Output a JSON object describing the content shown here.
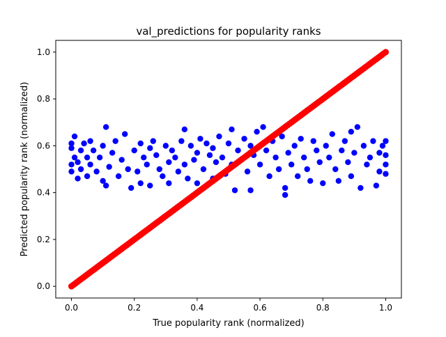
{
  "chart_data": {
    "type": "scatter",
    "title": "val_predictions for popularity ranks",
    "xlabel": "True popularity rank (normalized)",
    "ylabel": "Predicted popularity rank (normalized)",
    "xlim": [
      -0.05,
      1.05
    ],
    "ylim": [
      -0.05,
      1.05
    ],
    "xticks": [
      0.0,
      0.2,
      0.4,
      0.6,
      0.8,
      1.0
    ],
    "yticks": [
      0.0,
      0.2,
      0.4,
      0.6,
      0.8,
      1.0
    ],
    "tick_labels_x": [
      "0.0",
      "0.2",
      "0.4",
      "0.6",
      "0.8",
      "1.0"
    ],
    "tick_labels_y": [
      "0.0",
      "0.2",
      "0.4",
      "0.6",
      "0.8",
      "1.0"
    ],
    "grid": false,
    "series": [
      {
        "color": "#0000ff",
        "marker": "circle",
        "points": [
          [
            0.0,
            0.49
          ],
          [
            0.0,
            0.52
          ],
          [
            0.0,
            0.59
          ],
          [
            0.0,
            0.61
          ],
          [
            0.01,
            0.55
          ],
          [
            0.01,
            0.64
          ],
          [
            0.02,
            0.46
          ],
          [
            0.02,
            0.53
          ],
          [
            0.03,
            0.5
          ],
          [
            0.03,
            0.58
          ],
          [
            0.04,
            0.61
          ],
          [
            0.05,
            0.47
          ],
          [
            0.05,
            0.55
          ],
          [
            0.06,
            0.52
          ],
          [
            0.06,
            0.62
          ],
          [
            0.07,
            0.58
          ],
          [
            0.08,
            0.49
          ],
          [
            0.09,
            0.55
          ],
          [
            0.1,
            0.45
          ],
          [
            0.1,
            0.6
          ],
          [
            0.11,
            0.43
          ],
          [
            0.11,
            0.68
          ],
          [
            0.12,
            0.51
          ],
          [
            0.13,
            0.57
          ],
          [
            0.14,
            0.62
          ],
          [
            0.15,
            0.47
          ],
          [
            0.16,
            0.54
          ],
          [
            0.17,
            0.65
          ],
          [
            0.18,
            0.5
          ],
          [
            0.19,
            0.42
          ],
          [
            0.2,
            0.58
          ],
          [
            0.21,
            0.49
          ],
          [
            0.22,
            0.61
          ],
          [
            0.22,
            0.44
          ],
          [
            0.23,
            0.55
          ],
          [
            0.24,
            0.52
          ],
          [
            0.25,
            0.59
          ],
          [
            0.25,
            0.43
          ],
          [
            0.26,
            0.62
          ],
          [
            0.27,
            0.56
          ],
          [
            0.28,
            0.5
          ],
          [
            0.29,
            0.47
          ],
          [
            0.3,
            0.6
          ],
          [
            0.31,
            0.53
          ],
          [
            0.31,
            0.44
          ],
          [
            0.32,
            0.58
          ],
          [
            0.33,
            0.55
          ],
          [
            0.34,
            0.49
          ],
          [
            0.35,
            0.62
          ],
          [
            0.36,
            0.67
          ],
          [
            0.36,
            0.52
          ],
          [
            0.37,
            0.46
          ],
          [
            0.38,
            0.6
          ],
          [
            0.39,
            0.54
          ],
          [
            0.4,
            0.57
          ],
          [
            0.4,
            0.44
          ],
          [
            0.41,
            0.63
          ],
          [
            0.42,
            0.5
          ],
          [
            0.43,
            0.61
          ],
          [
            0.44,
            0.56
          ],
          [
            0.45,
            0.46
          ],
          [
            0.45,
            0.59
          ],
          [
            0.46,
            0.53
          ],
          [
            0.47,
            0.64
          ],
          [
            0.48,
            0.55
          ],
          [
            0.49,
            0.48
          ],
          [
            0.5,
            0.61
          ],
          [
            0.51,
            0.52
          ],
          [
            0.51,
            0.67
          ],
          [
            0.52,
            0.41
          ],
          [
            0.53,
            0.58
          ],
          [
            0.54,
            0.54
          ],
          [
            0.55,
            0.63
          ],
          [
            0.56,
            0.49
          ],
          [
            0.57,
            0.41
          ],
          [
            0.57,
            0.6
          ],
          [
            0.58,
            0.56
          ],
          [
            0.59,
            0.66
          ],
          [
            0.6,
            0.52
          ],
          [
            0.61,
            0.68
          ],
          [
            0.62,
            0.58
          ],
          [
            0.63,
            0.47
          ],
          [
            0.64,
            0.62
          ],
          [
            0.65,
            0.55
          ],
          [
            0.66,
            0.5
          ],
          [
            0.67,
            0.64
          ],
          [
            0.68,
            0.39
          ],
          [
            0.68,
            0.42
          ],
          [
            0.69,
            0.57
          ],
          [
            0.7,
            0.52
          ],
          [
            0.71,
            0.6
          ],
          [
            0.72,
            0.47
          ],
          [
            0.73,
            0.63
          ],
          [
            0.74,
            0.55
          ],
          [
            0.75,
            0.5
          ],
          [
            0.76,
            0.45
          ],
          [
            0.77,
            0.62
          ],
          [
            0.78,
            0.58
          ],
          [
            0.79,
            0.53
          ],
          [
            0.8,
            0.44
          ],
          [
            0.81,
            0.6
          ],
          [
            0.82,
            0.55
          ],
          [
            0.83,
            0.65
          ],
          [
            0.84,
            0.5
          ],
          [
            0.85,
            0.45
          ],
          [
            0.86,
            0.58
          ],
          [
            0.87,
            0.62
          ],
          [
            0.88,
            0.53
          ],
          [
            0.89,
            0.66
          ],
          [
            0.89,
            0.47
          ],
          [
            0.9,
            0.57
          ],
          [
            0.91,
            0.68
          ],
          [
            0.92,
            0.42
          ],
          [
            0.93,
            0.6
          ],
          [
            0.94,
            0.52
          ],
          [
            0.95,
            0.55
          ],
          [
            0.96,
            0.62
          ],
          [
            0.97,
            0.43
          ],
          [
            0.98,
            0.57
          ],
          [
            0.98,
            0.49
          ],
          [
            0.99,
            0.6
          ],
          [
            1.0,
            0.52
          ],
          [
            1.0,
            0.56
          ],
          [
            1.0,
            0.48
          ],
          [
            1.0,
            0.62
          ]
        ]
      },
      {
        "color": "#ff0000",
        "marker": "circle",
        "line": {
          "from": [
            0.0,
            0.0
          ],
          "to": [
            1.0,
            1.0
          ]
        }
      }
    ]
  }
}
